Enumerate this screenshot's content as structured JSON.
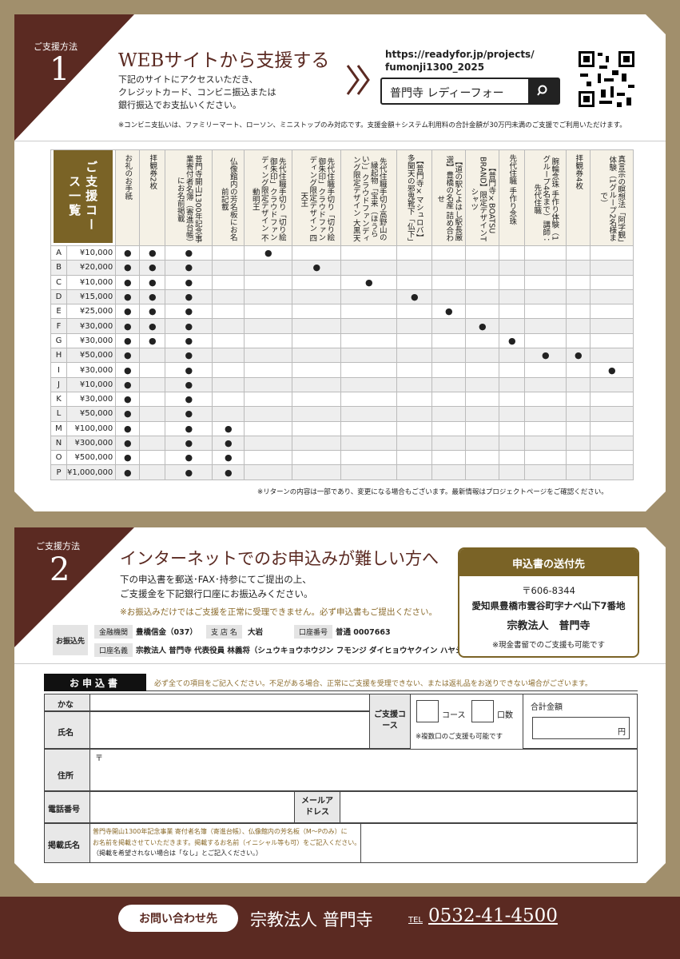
{
  "section1": {
    "badge_label": "ご支援方法",
    "badge_number": "1",
    "title": "WEBサイトから支援する",
    "description": [
      "下記のサイトにアクセスいただき、",
      "クレジットカード、コンビニ振込または",
      "銀行振込でお支払いください。"
    ],
    "url": [
      "https://readyfor.jp/projects/",
      "fumonji1300_2025"
    ],
    "search_text": "普門寺 レディーフォー",
    "note": "※コンビニ支払いは、ファミリーマート、ローソン、ミニストップのみ対応です。支援金額＋システム利用料の合計金額が30万円未満のご支援でご利用いただけます。"
  },
  "table": {
    "heading": "ご支援コース一覧",
    "columns": [
      "お礼のお手紙",
      "拝観券2枚",
      "普門寺開山1300年記念事業寄付者名簿（寄進台帳）にお名前掲載",
      "仏像館内の芳名板にお名前記載",
      "先代住職手切り「切り絵御朱印」クラウドファンディング限定デザイン 不動明王",
      "先代住職手切り「切り絵御朱印」クラウドファンディング限定デザイン 四天王",
      "先代住職手切り高野山の縁起物「宝来（ほうらい）」クラウドファンディング限定デザイン 大黒天",
      "【普門寺×マシュロバ】多聞天の邪鬼靴下「仏下」",
      "【道の駅とよはし駅長厳選】豊橋の名産 詰め合わせ",
      "【普門寺×BOATSU BRAND】限定デザインTシャツ",
      "先代住職 手作り念珠",
      "腕輪念珠 手作り体験（1グループ4名まで）講師：先代住職",
      "拝観券4枚",
      "真言宗の瞑想法「阿字観」体験（1グループ2名様まで）"
    ],
    "rows": [
      [
        "A",
        "¥10,000",
        "●",
        "●",
        "●",
        null,
        "●",
        null,
        null,
        null,
        null,
        null,
        null,
        null,
        null,
        null
      ],
      [
        "B",
        "¥20,000",
        "●",
        "●",
        "●",
        null,
        null,
        "●",
        null,
        null,
        null,
        null,
        null,
        null,
        null,
        null
      ],
      [
        "C",
        "¥10,000",
        "●",
        "●",
        "●",
        null,
        null,
        null,
        "●",
        null,
        null,
        null,
        null,
        null,
        null,
        null
      ],
      [
        "D",
        "¥15,000",
        "●",
        "●",
        "●",
        null,
        null,
        null,
        null,
        "●",
        null,
        null,
        null,
        null,
        null,
        null
      ],
      [
        "E",
        "¥25,000",
        "●",
        "●",
        "●",
        null,
        null,
        null,
        null,
        null,
        "●",
        null,
        null,
        null,
        null,
        null
      ],
      [
        "F",
        "¥30,000",
        "●",
        "●",
        "●",
        null,
        null,
        null,
        null,
        null,
        null,
        "●",
        null,
        null,
        null,
        null
      ],
      [
        "G",
        "¥30,000",
        "●",
        "●",
        "●",
        null,
        null,
        null,
        null,
        null,
        null,
        null,
        "●",
        null,
        null,
        null
      ],
      [
        "H",
        "¥50,000",
        "●",
        null,
        "●",
        null,
        null,
        null,
        null,
        null,
        null,
        null,
        null,
        "●",
        "●",
        null
      ],
      [
        "I",
        "¥30,000",
        "●",
        null,
        "●",
        null,
        null,
        null,
        null,
        null,
        null,
        null,
        null,
        null,
        null,
        "●"
      ],
      [
        "J",
        "¥10,000",
        "●",
        null,
        "●",
        null,
        null,
        null,
        null,
        null,
        null,
        null,
        null,
        null,
        null,
        null
      ],
      [
        "K",
        "¥30,000",
        "●",
        null,
        "●",
        null,
        null,
        null,
        null,
        null,
        null,
        null,
        null,
        null,
        null,
        null
      ],
      [
        "L",
        "¥50,000",
        "●",
        null,
        "●",
        null,
        null,
        null,
        null,
        null,
        null,
        null,
        null,
        null,
        null,
        null
      ],
      [
        "M",
        "¥100,000",
        "●",
        null,
        "●",
        "●",
        null,
        null,
        null,
        null,
        null,
        null,
        null,
        null,
        null,
        null
      ],
      [
        "N",
        "¥300,000",
        "●",
        null,
        "●",
        "●",
        null,
        null,
        null,
        null,
        null,
        null,
        null,
        null,
        null,
        null
      ],
      [
        "O",
        "¥500,000",
        "●",
        null,
        "●",
        "●",
        null,
        null,
        null,
        null,
        null,
        null,
        null,
        null,
        null,
        null
      ],
      [
        "P",
        "¥1,000,000",
        "●",
        null,
        "●",
        "●",
        null,
        null,
        null,
        null,
        null,
        null,
        null,
        null,
        null,
        null
      ]
    ],
    "note": "※リターンの内容は一部であり、変更になる場合もございます。最新情報はプロジェクトページをご確認ください。"
  },
  "section2": {
    "badge_label": "ご支援方法",
    "badge_number": "2",
    "title": "インターネットでのお申込みが難しい方へ",
    "description": [
      "下の申込書を郵送･FAX･持参にてご提出の上、",
      "ご支援金を下記銀行口座にお振込みください。"
    ],
    "warning": "※お振込みだけではご支援を正常に受理できません。必ず申込書もご提出ください。",
    "bank_label": "お振込先",
    "bank": [
      {
        "label": "金融機関",
        "value": "豊橋信金（037）"
      },
      {
        "label": "支 店 名",
        "value": "大岩"
      },
      {
        "label": "口座番号",
        "value": "普通 0007663"
      },
      {
        "label": "口座名義",
        "value": "宗教法人 普門寺 代表役員 林義将（シュウキョウホウジン フモンジ ダイヒョウヤクイン ハヤシギショウ）"
      }
    ],
    "send_to": {
      "title": "申込書の送付先",
      "postal": "〒606-8344",
      "address": "愛知県豊橋市雲谷町字ナベ山下7番地",
      "name": "宗教法人　普門寺",
      "note": "※現金書留でのご支援も可能です"
    }
  },
  "form": {
    "title": "お申込書",
    "instruction": "必ず全ての項目をご記入ください。不足がある場合、正常にご支援を受理できない、または返礼品をお送りできない場合がございます。",
    "kana": "かな",
    "name": "氏名",
    "course_label": "ご支援コース",
    "course": "コース",
    "units": "口数",
    "multi_note": "※複数口のご支援も可能です",
    "total": "合計金額",
    "yen": "円",
    "address": "住所",
    "postal_mark": "〒",
    "phone": "電話番号",
    "email": "メールアドレス",
    "listing_name": "掲載氏名",
    "listing_notes": [
      "普門寺開山1300年記念事業 寄付者名簿（寄進台帳）、仏像館内の芳名板（M〜Pのみ）に",
      "お名前を掲載させていただきます。掲載するお名前（イニシャル等も可）をご記入ください。",
      "（掲載を希望されない場合は「なし」とご記入ください。）"
    ]
  },
  "footer": {
    "contact_label": "お問い合わせ先",
    "org": "宗教法人 普門寺",
    "tel_label": "TEL",
    "tel": "0532-41-4500"
  }
}
